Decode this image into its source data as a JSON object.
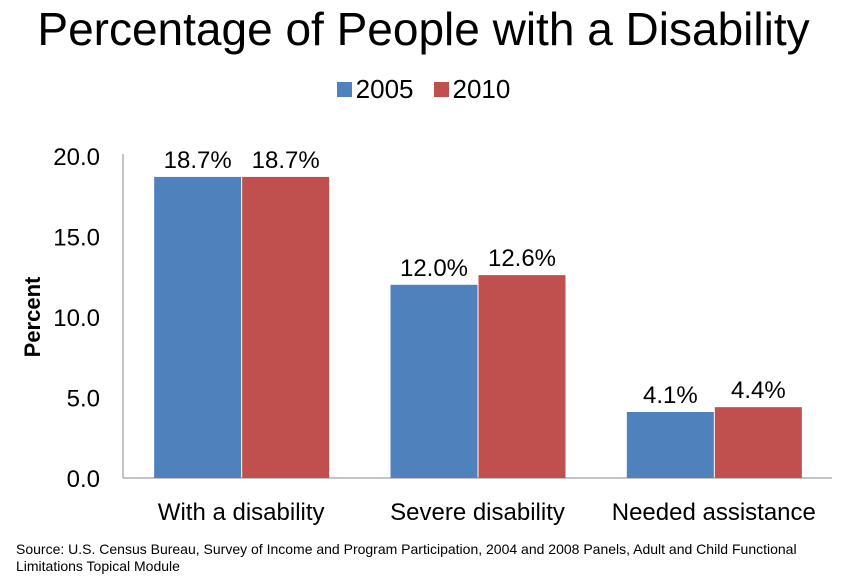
{
  "chart_data": {
    "type": "bar",
    "title": "Percentage of People with a Disability",
    "xlabel": "",
    "ylabel": "Percent",
    "ylim": [
      0,
      20
    ],
    "yticks": [
      "0.0",
      "5.0",
      "10.0",
      "15.0",
      "20.0"
    ],
    "grid": false,
    "legend_position": "top",
    "categories": [
      "With a disability",
      "Severe disability",
      "Needed assistance"
    ],
    "series": [
      {
        "name": "2005",
        "color": "#4F81BD",
        "values": [
          18.7,
          12.0,
          4.1
        ],
        "labels": [
          "18.7%",
          "12.0%",
          "4.1%"
        ]
      },
      {
        "name": "2010",
        "color": "#C0504D",
        "values": [
          18.7,
          12.6,
          4.4
        ],
        "labels": [
          "18.7%",
          "12.6%",
          "4.4%"
        ]
      }
    ]
  },
  "source": "Source:  U.S. Census Bureau, Survey of Income and Program Participation, 2004 and 2008 Panels, Adult and Child Functional Limitations Topical Module"
}
